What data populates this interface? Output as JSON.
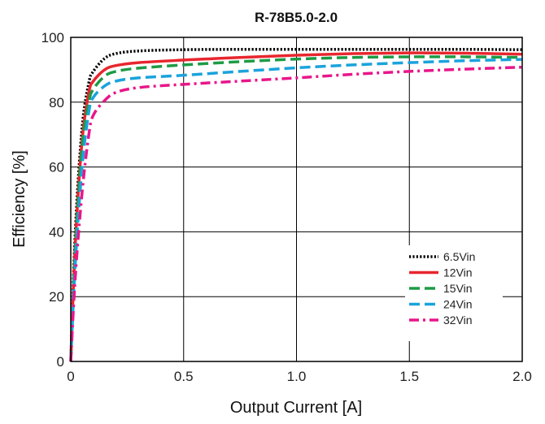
{
  "chart_data": {
    "type": "line",
    "title": "R-78B5.0-2.0",
    "xlabel": "Output Current [A]",
    "ylabel": "Efficiency [%]",
    "xlim": [
      0,
      2.0
    ],
    "ylim": [
      0,
      100
    ],
    "xticks": [
      "0",
      "0.5",
      "1.0",
      "1.5",
      "2.0"
    ],
    "yticks": [
      "0",
      "20",
      "40",
      "60",
      "80",
      "100"
    ],
    "grid": true,
    "legend_position": "bottom-right",
    "series": [
      {
        "name": "6.5Vin",
        "color": "#000000",
        "dash": "dotted",
        "x": [
          0,
          0.02,
          0.05,
          0.08,
          0.1,
          0.15,
          0.2,
          0.3,
          0.5,
          0.75,
          1.0,
          1.25,
          1.5,
          1.75,
          2.0
        ],
        "y": [
          0,
          40,
          72,
          86,
          89.5,
          93.5,
          95,
          95.8,
          96.2,
          96.3,
          96.3,
          96.3,
          96.3,
          96.3,
          96.2
        ]
      },
      {
        "name": "12Vin",
        "color": "#e8262e",
        "dash": "solid",
        "x": [
          0,
          0.02,
          0.05,
          0.08,
          0.1,
          0.15,
          0.2,
          0.3,
          0.5,
          0.75,
          1.0,
          1.25,
          1.5,
          1.75,
          2.0
        ],
        "y": [
          0,
          36,
          68,
          83,
          86.5,
          90,
          91.3,
          92.2,
          93,
          93.8,
          94.5,
          95,
          95.2,
          95.1,
          94.8
        ]
      },
      {
        "name": "15Vin",
        "color": "#1e9b45",
        "dash": "dashed",
        "x": [
          0,
          0.02,
          0.05,
          0.08,
          0.1,
          0.15,
          0.2,
          0.3,
          0.5,
          0.75,
          1.0,
          1.25,
          1.5,
          1.75,
          2.0
        ],
        "y": [
          0,
          34,
          66,
          80,
          84,
          88,
          89.5,
          90.5,
          91.5,
          92.5,
          93.3,
          93.8,
          94,
          94,
          93.8
        ]
      },
      {
        "name": "24Vin",
        "color": "#1aa3dc",
        "dash": "dashed",
        "x": [
          0,
          0.02,
          0.05,
          0.08,
          0.1,
          0.15,
          0.2,
          0.3,
          0.5,
          0.75,
          1.0,
          1.25,
          1.5,
          1.75,
          2.0
        ],
        "y": [
          0,
          30,
          60,
          77,
          81.5,
          85,
          86.5,
          87.5,
          88.3,
          89.5,
          90.6,
          91.5,
          92.2,
          92.8,
          93.2
        ]
      },
      {
        "name": "32Vin",
        "color": "#e8168a",
        "dash": "dashdot",
        "x": [
          0,
          0.02,
          0.05,
          0.08,
          0.1,
          0.15,
          0.2,
          0.3,
          0.5,
          0.75,
          1.0,
          1.25,
          1.5,
          1.75,
          2.0
        ],
        "y": [
          0,
          26,
          52,
          70,
          76,
          80.5,
          83,
          84.5,
          85.5,
          86.5,
          87.5,
          88.6,
          89.5,
          90.2,
          90.8
        ]
      }
    ]
  }
}
